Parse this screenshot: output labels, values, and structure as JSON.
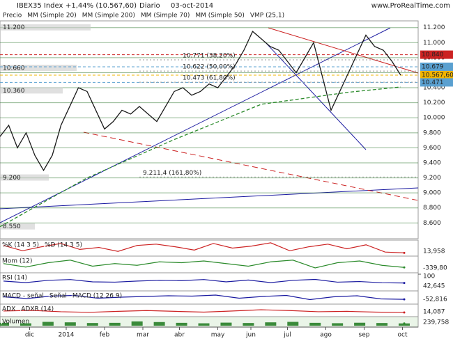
{
  "header": {
    "symbol": "IBEX35 Index",
    "change": "+1,44% (10.567,60)",
    "period": "Diario",
    "date": "03-oct-2014",
    "site": "www.ProRealTime.com"
  },
  "chart_data": {
    "type": "line",
    "legend": [
      "Precio",
      "MM (Simple 20)",
      "MM (Simple 200)",
      "MM (Simple 70)",
      "MM (Simple 50)",
      "VMP (25,1)"
    ],
    "xlim": [
      0,
      48
    ],
    "xticks": [
      {
        "value": 3.4,
        "label": "dic"
      },
      {
        "value": 7.6,
        "label": "2014"
      },
      {
        "value": 12,
        "label": "feb"
      },
      {
        "value": 16.4,
        "label": "mar"
      },
      {
        "value": 20.6,
        "label": "abr"
      },
      {
        "value": 25,
        "label": "may"
      },
      {
        "value": 28.8,
        "label": "jun"
      },
      {
        "value": 33,
        "label": "jul"
      },
      {
        "value": 37.4,
        "label": "ago"
      },
      {
        "value": 41.8,
        "label": "sep"
      },
      {
        "value": 46.2,
        "label": "oct"
      }
    ],
    "ylim": [
      8390,
      11290
    ],
    "yticks": [
      {
        "value": 11200,
        "label": "11.200"
      },
      {
        "value": 11000,
        "label": "11.000"
      },
      {
        "value": 10800,
        "label": "10.800"
      },
      {
        "value": 10600,
        "label": "10.600"
      },
      {
        "value": 10400,
        "label": "10.400"
      },
      {
        "value": 10200,
        "label": "10.200"
      },
      {
        "value": 10000,
        "label": "10.000"
      },
      {
        "value": 9800,
        "label": "9.800"
      },
      {
        "value": 9600,
        "label": "9.600"
      },
      {
        "value": 9400,
        "label": "9.400"
      },
      {
        "value": 9200,
        "label": "9.200"
      },
      {
        "value": 9000,
        "label": "9.000"
      },
      {
        "value": 8800,
        "label": "8.800"
      },
      {
        "value": 8600,
        "label": "8.600"
      }
    ],
    "series": [
      {
        "name": "Precio",
        "color": "#1a1a1a",
        "x": [
          0,
          1,
          2,
          3,
          4,
          5,
          6,
          7,
          8,
          9,
          10,
          11,
          12,
          13,
          14,
          15,
          16,
          17,
          18,
          19,
          20,
          21,
          22,
          23,
          24,
          25,
          26,
          27,
          28,
          29,
          30,
          31,
          32,
          33,
          34,
          35,
          36,
          37,
          38,
          39,
          40,
          41,
          42,
          43,
          44,
          45,
          46
        ],
        "values": [
          9750,
          9900,
          9600,
          9800,
          9500,
          9300,
          9500,
          9900,
          10150,
          10400,
          10350,
          10100,
          9850,
          9950,
          10100,
          10050,
          10150,
          10050,
          9950,
          10150,
          10350,
          10400,
          10300,
          10350,
          10450,
          10400,
          10550,
          10700,
          10900,
          11150,
          11050,
          10950,
          10900,
          10750,
          10600,
          10800,
          11000,
          10550,
          10100,
          10350,
          10600,
          10850,
          11100,
          10950,
          10900,
          10750,
          10567.6
        ]
      },
      {
        "name": "MM (Simple 200)",
        "color": "#2a8a2a",
        "x": [
          0,
          10,
          20,
          30,
          40,
          46
        ],
        "values": [
          8550,
          9200,
          9710,
          10180,
          10340,
          10410
        ]
      }
    ],
    "levels": [
      {
        "value": 10840,
        "label": "10.840",
        "color": "#cc2222"
      },
      {
        "value": 10679,
        "label": "10.679",
        "color": "#5aa0d0"
      },
      {
        "value": 10567.6,
        "label": "10.567,60",
        "color": "#f0b400"
      },
      {
        "value": 10471,
        "label": "10.471",
        "color": "#5aa0d0"
      }
    ],
    "annotations": [
      {
        "value": 10771,
        "label": "10.771 (38,20%)"
      },
      {
        "value": 10622,
        "label": "10.622 (50,00%)"
      },
      {
        "value": 10473,
        "label": "10.473 (61,80%)"
      },
      {
        "value": 9211.4,
        "label": "9.211,4 (161,80%)"
      }
    ],
    "volume_profile": [
      {
        "value": 11200,
        "label": "11.200"
      },
      {
        "value": 10660,
        "label": "10.660"
      },
      {
        "value": 10360,
        "label": "10.360"
      },
      {
        "value": 9200,
        "label": "9.200"
      },
      {
        "value": 8550,
        "label": "8.550"
      }
    ],
    "panels": [
      {
        "name": "%K (14 3 5)",
        "label2": "%D (14 3 5)",
        "ylim": [
          0,
          100
        ],
        "values": [
          70,
          30,
          60,
          85,
          40,
          55,
          25,
          70,
          80,
          60,
          35,
          85,
          50,
          65,
          90,
          30,
          60,
          80,
          45,
          75,
          20,
          14
        ],
        "last": {
          "value": 13.958,
          "label": "13,958"
        }
      },
      {
        "name": "Mom (12)",
        "ylim": [
          -800,
          800
        ],
        "values": [
          100,
          -300,
          200,
          500,
          -200,
          100,
          -100,
          300,
          200,
          400,
          100,
          -200,
          300,
          500,
          -400,
          200,
          400,
          -100,
          -339.8
        ],
        "last": {
          "value": -339.8,
          "label": "-339,80"
        }
      },
      {
        "name": "RSI (14)",
        "ylim": [
          0,
          100
        ],
        "yticks": [
          100
        ],
        "values": [
          55,
          45,
          60,
          65,
          50,
          48,
          55,
          60,
          58,
          65,
          50,
          62,
          45,
          60,
          66,
          48,
          52,
          44,
          42.6
        ],
        "last": {
          "value": 42.645,
          "label": "42,645"
        }
      },
      {
        "name": "MACD - señal",
        "label2": "Señal",
        "label3": "MACD (12 26 9)",
        "ylim": [
          -150,
          150
        ],
        "values": [
          20,
          -30,
          40,
          60,
          -20,
          10,
          30,
          50,
          40,
          70,
          -20,
          30,
          60,
          -60,
          20,
          50,
          -40,
          -52.8
        ],
        "last": {
          "value": -52.816,
          "label": "-52,816"
        }
      },
      {
        "name": "ADX",
        "label2": "ADXR (14)",
        "ylim": [
          0,
          50
        ],
        "values": [
          22,
          25,
          18,
          15,
          20,
          24,
          20,
          16,
          22,
          28,
          24,
          18,
          20,
          16,
          14
        ],
        "last": {
          "value": 14.087,
          "label": "14,087"
        }
      },
      {
        "name": "Volumen",
        "ylim": [
          0,
          800
        ],
        "values": [
          300,
          250,
          400,
          350,
          280,
          300,
          450,
          380,
          300,
          250,
          320,
          280,
          350,
          400,
          300,
          260,
          310,
          280,
          240
        ],
        "last": {
          "value": 239.758,
          "label": "239,758"
        }
      }
    ]
  }
}
